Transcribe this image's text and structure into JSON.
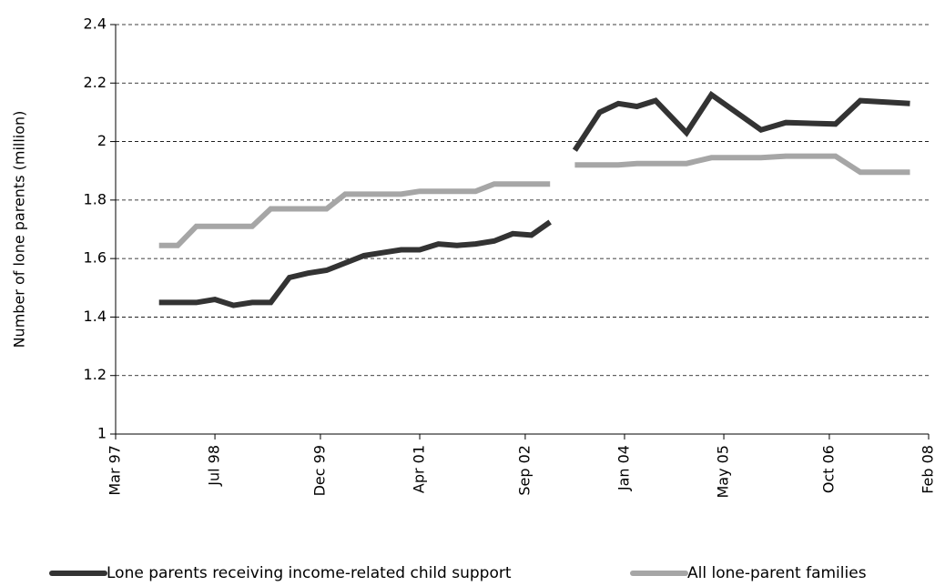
{
  "chart_data": {
    "type": "line",
    "y_label": "Number of lone parents (million)",
    "x": [
      "1997-10",
      "1998-01",
      "1998-04",
      "1998-07",
      "1998-10",
      "1999-01",
      "1999-04",
      "1999-07",
      "1999-10",
      "2000-01",
      "2000-04",
      "2000-07",
      "2000-10",
      "2001-01",
      "2001-04",
      "2001-07",
      "2001-10",
      "2002-01",
      "2002-04",
      "2002-07",
      "2002-10",
      "2003-01",
      "2003-03",
      "2003-05",
      "2003-09",
      "2003-12",
      "2004-03",
      "2004-06",
      "2004-11",
      "2005-03",
      "2005-11",
      "2006-03",
      "2006-11",
      "2007-03",
      "2007-11"
    ],
    "series": [
      {
        "name": "Lone parents receiving income-related child support",
        "color": "#333333",
        "values": [
          1.45,
          1.45,
          1.45,
          1.46,
          1.44,
          1.45,
          1.45,
          1.535,
          1.55,
          1.56,
          1.585,
          1.61,
          1.62,
          1.63,
          1.63,
          1.65,
          1.645,
          1.65,
          1.66,
          1.685,
          1.68,
          1.725,
          null,
          1.97,
          2.1,
          2.13,
          2.12,
          2.14,
          2.03,
          2.16,
          2.04,
          2.065,
          2.06,
          2.14,
          2.13
        ]
      },
      {
        "name": "All lone-parent families",
        "color": "#a6a6a6",
        "values": [
          1.645,
          1.645,
          1.71,
          1.71,
          1.71,
          1.71,
          1.77,
          1.77,
          1.77,
          1.77,
          1.82,
          1.82,
          1.82,
          1.82,
          1.83,
          1.83,
          1.83,
          1.83,
          1.855,
          1.855,
          1.855,
          1.855,
          null,
          1.92,
          1.92,
          1.92,
          1.925,
          1.925,
          1.925,
          1.945,
          1.945,
          1.95,
          1.95,
          1.895,
          1.895
        ]
      }
    ],
    "xlim": [
      "1997-03",
      "2008-02"
    ],
    "xticks": [
      {
        "value": "1997-03",
        "label": "Mar 97"
      },
      {
        "value": "1998-07",
        "label": "Jul 98"
      },
      {
        "value": "1999-12",
        "label": "Dec 99"
      },
      {
        "value": "2001-04",
        "label": "Apr 01"
      },
      {
        "value": "2002-09",
        "label": "Sep 02"
      },
      {
        "value": "2004-01",
        "label": "Jan 04"
      },
      {
        "value": "2005-05",
        "label": "May 05"
      },
      {
        "value": "2006-10",
        "label": "Oct 06"
      },
      {
        "value": "2008-02",
        "label": "Feb 08"
      }
    ],
    "ylim": [
      1,
      2.4
    ],
    "yticks": [
      1,
      1.2,
      1.4,
      1.6,
      1.8,
      2,
      2.2,
      2.4
    ],
    "grid": true,
    "legend_position": "bottom"
  }
}
